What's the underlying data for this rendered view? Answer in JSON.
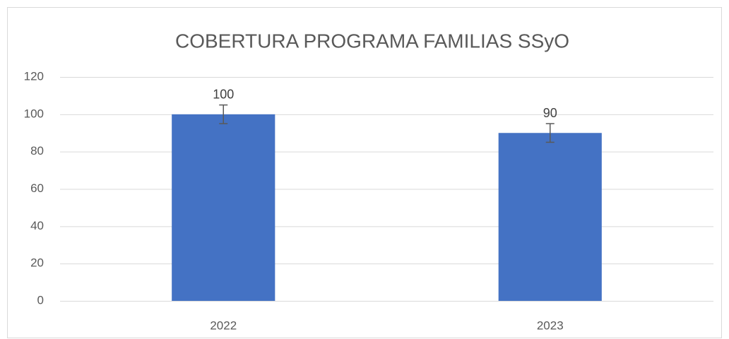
{
  "chart_data": {
    "type": "bar",
    "title": "COBERTURA PROGRAMA FAMILIAS SSyO",
    "categories": [
      "2022",
      "2023"
    ],
    "values": [
      100,
      90
    ],
    "errors": [
      5,
      5
    ],
    "color": "#4472c4",
    "ylim": [
      0,
      120
    ],
    "yticks": [
      0,
      20,
      40,
      60,
      80,
      100,
      120
    ],
    "grid": true
  }
}
